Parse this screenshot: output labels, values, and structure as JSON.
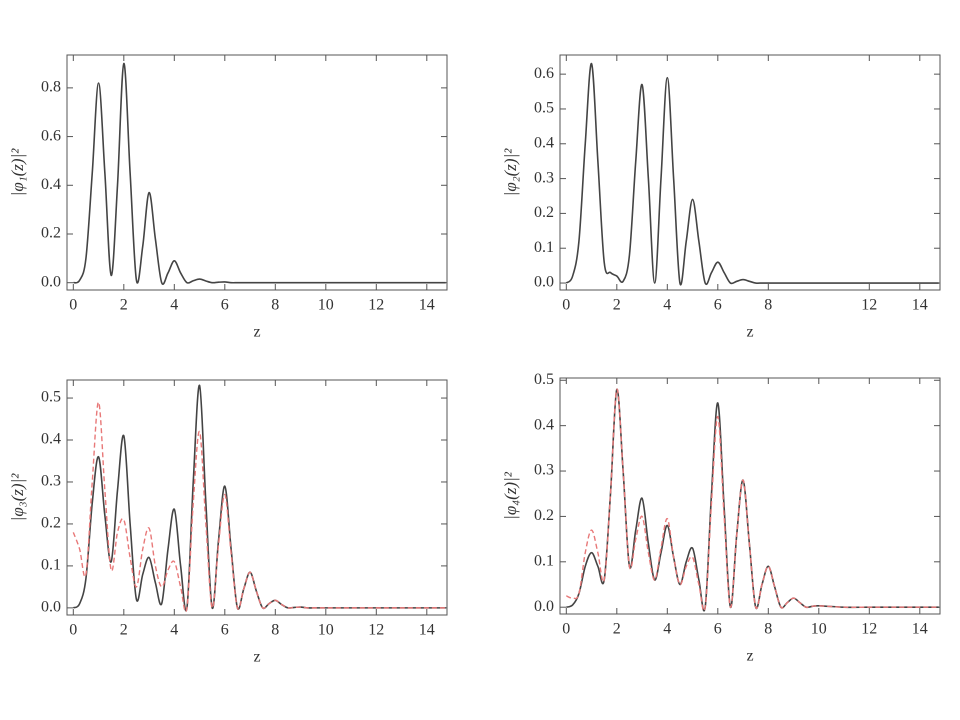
{
  "chart_data": [
    {
      "type": "line",
      "ylabel": "|φ₁(z)|²",
      "xlabel": "z",
      "x": [
        0,
        0.25,
        0.5,
        0.75,
        1,
        1.25,
        1.5,
        1.75,
        2,
        2.25,
        2.5,
        2.75,
        3,
        3.25,
        3.5,
        3.75,
        4,
        4.25,
        4.5,
        4.75,
        5,
        5.25,
        5.5,
        5.75,
        6,
        6.25,
        6.5,
        6.75,
        7,
        7.25,
        7.5,
        7.75,
        8,
        8.25,
        8.5,
        8.75,
        9,
        9.25,
        9.5,
        9.75,
        10,
        11,
        12,
        13,
        14,
        14.75
      ],
      "series": [
        {
          "color": "#444444",
          "style": "solid",
          "values": [
            0,
            0.01,
            0.1,
            0.45,
            0.82,
            0.45,
            0.03,
            0.4,
            0.9,
            0.45,
            0.01,
            0.15,
            0.37,
            0.18,
            0,
            0.04,
            0.09,
            0.04,
            0,
            0.008,
            0.015,
            0.007,
            0,
            0.002,
            0.003,
            0,
            0,
            0,
            0,
            0,
            0,
            0,
            0,
            0,
            0,
            0,
            0,
            0,
            0,
            0,
            0,
            0,
            0,
            0,
            0,
            0
          ]
        }
      ],
      "xlim": [
        -0.25,
        14.8
      ],
      "xticks": [
        0,
        2,
        4,
        6,
        8,
        10,
        12,
        14
      ],
      "ylim": [
        -0.03,
        0.935
      ],
      "yticks": [
        {
          "value": 0,
          "label": "0.0"
        },
        0.2,
        0.4,
        0.6,
        0.8
      ]
    },
    {
      "type": "line",
      "ylabel": "|φ₂(z)|²",
      "xlabel": "z",
      "x": [
        0,
        0.25,
        0.5,
        0.75,
        1,
        1.25,
        1.5,
        1.75,
        2,
        2.25,
        2.5,
        2.75,
        3,
        3.25,
        3.5,
        3.75,
        4,
        4.25,
        4.5,
        4.75,
        5,
        5.25,
        5.5,
        5.75,
        6,
        6.25,
        6.5,
        6.75,
        7,
        7.25,
        7.5,
        7.75,
        8,
        8.25,
        8.5,
        8.75,
        9,
        9.25,
        9.5,
        9.75,
        10,
        11,
        12,
        13,
        14,
        14.75
      ],
      "series": [
        {
          "color": "#444444",
          "style": "solid",
          "values": [
            0,
            0.02,
            0.12,
            0.4,
            0.63,
            0.35,
            0.06,
            0.03,
            0.02,
            0.005,
            0.08,
            0.35,
            0.57,
            0.3,
            0,
            0.3,
            0.59,
            0.3,
            0,
            0.12,
            0.24,
            0.12,
            0,
            0.03,
            0.06,
            0.03,
            0,
            0.005,
            0.01,
            0.005,
            0,
            0,
            0,
            0,
            0,
            0,
            0,
            0,
            0,
            0,
            0,
            0,
            0,
            0,
            0,
            0
          ]
        }
      ],
      "xlim": [
        -0.25,
        14.8
      ],
      "xticks": [
        0,
        2,
        4,
        6,
        8,
        12,
        14
      ],
      "ylim": [
        -0.02,
        0.655
      ],
      "yticks": [
        {
          "value": 0,
          "label": "0.0"
        },
        0.1,
        0.2,
        0.3,
        0.4,
        0.5,
        0.6
      ]
    },
    {
      "type": "line",
      "ylabel": "|φ₃(z)|²",
      "xlabel": "z",
      "x": [
        0,
        0.25,
        0.5,
        0.75,
        1,
        1.25,
        1.5,
        1.75,
        2,
        2.25,
        2.5,
        2.75,
        3,
        3.25,
        3.5,
        3.75,
        4,
        4.25,
        4.5,
        4.75,
        5,
        5.25,
        5.5,
        5.75,
        6,
        6.25,
        6.5,
        6.75,
        7,
        7.25,
        7.5,
        7.75,
        8,
        8.25,
        8.5,
        8.75,
        9,
        9.25,
        9.5,
        9.75,
        10,
        11,
        12,
        13,
        14,
        14.75
      ],
      "series": [
        {
          "color": "#444444",
          "style": "solid",
          "values": [
            0,
            0.01,
            0.07,
            0.25,
            0.36,
            0.22,
            0.11,
            0.28,
            0.41,
            0.2,
            0.02,
            0.08,
            0.12,
            0.06,
            0.01,
            0.14,
            0.235,
            0.1,
            0,
            0.3,
            0.53,
            0.25,
            0,
            0.16,
            0.29,
            0.14,
            0,
            0.045,
            0.085,
            0.04,
            0,
            0.01,
            0.018,
            0.008,
            0,
            0.001,
            0.002,
            0,
            0,
            0,
            0,
            0,
            0,
            0,
            0,
            0
          ]
        },
        {
          "color": "#e87878",
          "style": "dashed",
          "values": [
            0.18,
            0.14,
            0.08,
            0.3,
            0.49,
            0.28,
            0.09,
            0.18,
            0.21,
            0.12,
            0.05,
            0.14,
            0.19,
            0.1,
            0.05,
            0.09,
            0.11,
            0.05,
            0,
            0.25,
            0.42,
            0.2,
            0,
            0.15,
            0.27,
            0.13,
            0,
            0.045,
            0.085,
            0.04,
            0,
            0.01,
            0.018,
            0.008,
            0,
            0.001,
            0.002,
            0,
            0,
            0,
            0,
            0,
            0,
            0,
            0,
            0
          ]
        }
      ],
      "xlim": [
        -0.25,
        14.8
      ],
      "xticks": [
        0,
        2,
        4,
        6,
        8,
        10,
        12,
        14
      ],
      "ylim": [
        -0.017,
        0.543
      ],
      "yticks": [
        {
          "value": 0,
          "label": "0.0"
        },
        0.1,
        0.2,
        0.3,
        0.4,
        0.5
      ]
    },
    {
      "type": "line",
      "ylabel": "|φ₄(z)|²",
      "xlabel": "z",
      "x": [
        0,
        0.25,
        0.5,
        0.75,
        1,
        1.25,
        1.5,
        1.75,
        2,
        2.25,
        2.5,
        2.75,
        3,
        3.25,
        3.5,
        3.75,
        4,
        4.25,
        4.5,
        4.75,
        5,
        5.25,
        5.5,
        5.75,
        6,
        6.25,
        6.5,
        6.75,
        7,
        7.25,
        7.5,
        7.75,
        8,
        8.25,
        8.5,
        8.75,
        9,
        9.25,
        9.5,
        9.75,
        10,
        11,
        12,
        13,
        14,
        14.75
      ],
      "series": [
        {
          "color": "#444444",
          "style": "solid",
          "values": [
            0,
            0.005,
            0.03,
            0.09,
            0.12,
            0.09,
            0.06,
            0.25,
            0.48,
            0.3,
            0.09,
            0.17,
            0.24,
            0.14,
            0.06,
            0.12,
            0.18,
            0.11,
            0.05,
            0.1,
            0.13,
            0.06,
            0,
            0.25,
            0.45,
            0.22,
            0,
            0.16,
            0.28,
            0.14,
            0,
            0.05,
            0.09,
            0.045,
            0,
            0.01,
            0.02,
            0.01,
            0,
            0.002,
            0.003,
            0,
            0,
            0,
            0,
            0
          ]
        },
        {
          "color": "#e87878",
          "style": "dashed",
          "values": [
            0.025,
            0.02,
            0.03,
            0.12,
            0.17,
            0.12,
            0.06,
            0.25,
            0.48,
            0.3,
            0.09,
            0.15,
            0.2,
            0.12,
            0.06,
            0.13,
            0.195,
            0.11,
            0.05,
            0.09,
            0.11,
            0.05,
            0,
            0.23,
            0.42,
            0.2,
            0,
            0.16,
            0.28,
            0.14,
            0,
            0.05,
            0.09,
            0.045,
            0,
            0.01,
            0.02,
            0.01,
            0,
            0.002,
            0.003,
            0,
            0,
            0,
            0,
            0
          ]
        }
      ],
      "xlim": [
        -0.25,
        14.8
      ],
      "xticks": [
        0,
        2,
        4,
        6,
        8,
        10,
        12,
        14
      ],
      "ylim": [
        -0.015,
        0.505
      ],
      "yticks": [
        {
          "value": 0,
          "label": "0.0"
        },
        0.1,
        0.2,
        0.3,
        0.4,
        0.5
      ]
    }
  ]
}
